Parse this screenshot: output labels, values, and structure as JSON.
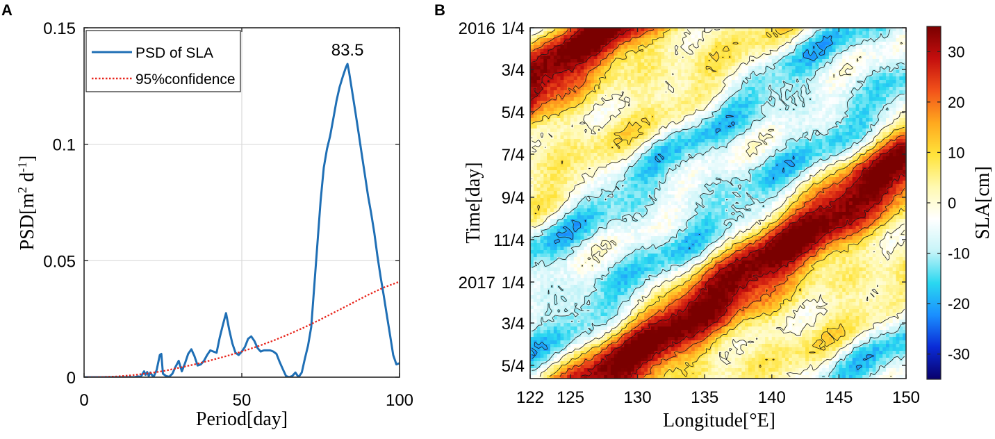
{
  "chart_data": [
    {
      "panel_label": "A",
      "type": "line",
      "xlabel": "Period[day]",
      "ylabel": "PSD[m² d⁻¹]",
      "ylabel_base": "PSD[m",
      "ylabel_sup1": "2",
      "ylabel_mid": " d",
      "ylabel_sup2": "-1",
      "ylabel_end": "]",
      "xlim": [
        0,
        100
      ],
      "ylim": [
        0,
        0.15
      ],
      "xticks": [
        0,
        50,
        100
      ],
      "xtick_labels": [
        "0",
        "50",
        "100"
      ],
      "yticks": [
        0,
        0.05,
        0.1,
        0.15
      ],
      "ytick_labels": [
        "0",
        "0.05",
        "0.1",
        "0.15"
      ],
      "grid": true,
      "legend_position": "top-left",
      "annotation": {
        "text": "83.5",
        "x": 83.5,
        "y": 0.1345
      },
      "series": [
        {
          "name": "PSD of SLA",
          "color": "#1f6fb5",
          "style": "solid",
          "x": [
            0,
            10,
            16,
            17,
            18,
            19,
            19.5,
            20,
            20.5,
            21,
            22,
            23,
            24,
            24.5,
            25,
            26,
            27,
            28,
            29,
            30,
            31,
            32,
            33,
            34,
            35,
            36,
            37,
            38,
            39,
            40,
            41,
            42,
            43,
            44,
            45,
            46,
            47,
            48,
            49,
            50,
            51,
            52,
            53,
            54,
            55,
            56,
            57,
            58,
            59,
            60,
            61,
            62,
            63,
            64,
            65,
            66,
            67,
            68,
            69,
            70,
            71,
            72,
            73,
            74,
            75,
            76,
            77,
            78,
            79,
            80,
            81,
            82,
            83,
            83.5,
            84,
            85,
            86,
            87,
            88,
            89,
            90,
            91,
            92,
            93,
            94,
            95,
            96,
            97,
            98,
            99,
            100
          ],
          "values": [
            0,
            0,
            0,
            0.0003,
            0.0002,
            0.0025,
            0.001,
            0.0022,
            0.0005,
            0.002,
            0.0,
            0.003,
            0.0095,
            0.01,
            0.0015,
            0.0005,
            0.0002,
            0.0015,
            0.0045,
            0.007,
            0.0025,
            0.006,
            0.01,
            0.012,
            0.009,
            0.005,
            0.0055,
            0.007,
            0.0095,
            0.0115,
            0.011,
            0.0105,
            0.017,
            0.0225,
            0.0275,
            0.0205,
            0.0145,
            0.0105,
            0.0095,
            0.011,
            0.013,
            0.0165,
            0.0175,
            0.0155,
            0.0125,
            0.011,
            0.0115,
            0.0115,
            0.0115,
            0.011,
            0.01,
            0.0065,
            0.0035,
            0.0005,
            0.0,
            0.0005,
            0.002,
            0.0,
            0.002,
            0.008,
            0.0135,
            0.0215,
            0.0395,
            0.058,
            0.076,
            0.09,
            0.098,
            0.1035,
            0.111,
            0.1185,
            0.1245,
            0.129,
            0.133,
            0.1345,
            0.131,
            0.1225,
            0.114,
            0.105,
            0.096,
            0.087,
            0.078,
            0.0705,
            0.062,
            0.052,
            0.043,
            0.035,
            0.0265,
            0.018,
            0.0095,
            0.0055,
            0.006
          ]
        },
        {
          "name": "95%confidence",
          "color": "#e8251c",
          "style": "dotted",
          "x": [
            0,
            5,
            10,
            15,
            20,
            25,
            30,
            35,
            40,
            45,
            50,
            55,
            60,
            65,
            70,
            75,
            80,
            85,
            90,
            95,
            100
          ],
          "values": [
            0,
            5e-05,
            0.0003,
            0.0008,
            0.0016,
            0.0026,
            0.004,
            0.0055,
            0.0072,
            0.009,
            0.011,
            0.0132,
            0.0157,
            0.0185,
            0.0215,
            0.0248,
            0.0283,
            0.0318,
            0.0353,
            0.0385,
            0.041
          ]
        }
      ]
    },
    {
      "panel_label": "B",
      "type": "heatmap",
      "xlabel": "Longitude[°E]",
      "ylabel": "Time[day]",
      "xlim": [
        122,
        150
      ],
      "xticks": [
        122,
        125,
        130,
        135,
        140,
        145,
        150
      ],
      "xtick_labels": [
        "122",
        "125",
        "130",
        "135",
        "140",
        "145",
        "150"
      ],
      "time_range_days": [
        0,
        505
      ],
      "yticks_days": [
        0,
        60,
        121,
        182,
        244,
        305,
        366,
        425,
        486
      ],
      "ytick_labels": [
        "1/4",
        "3/4",
        "5/4",
        "7/4",
        "9/4",
        "11/4",
        "1/4",
        "3/4",
        "5/4"
      ],
      "year_labels": [
        {
          "text": "2016",
          "day": 0
        },
        {
          "text": "2017",
          "day": 366
        }
      ],
      "colorbar_label": "SLA[cm]",
      "colorbar_range": [
        -35,
        35
      ],
      "colorbar_ticks": [
        30,
        20,
        10,
        0,
        -10,
        -20,
        -30
      ],
      "colorbar_tick_labels": [
        "30",
        "20",
        "10",
        "0",
        "-10",
        "-20",
        "-30"
      ],
      "contour_levels": [
        -20,
        -10,
        0,
        10,
        20,
        30
      ],
      "colormap": [
        "#08006b",
        "#0a2bd6",
        "#1a8fff",
        "#2ad8f0",
        "#c7f4f8",
        "#ffffff",
        "#fff9b0",
        "#ffe33a",
        "#ffa81e",
        "#f2521a",
        "#c40e0e",
        "#7a0000"
      ],
      "westward_band_centers": [
        {
          "sign": 1,
          "amplitude": 30,
          "lon_at_day0": 163,
          "speed_deg_per_day": -0.072
        },
        {
          "sign": -1,
          "amplitude": 22,
          "lon_at_day0": 145,
          "speed_deg_per_day": -0.072
        },
        {
          "sign": 1,
          "amplitude": 14,
          "lon_at_day0": 178,
          "speed_deg_per_day": -0.072
        },
        {
          "sign": -1,
          "amplitude": 16,
          "lon_at_day0": 192,
          "speed_deg_per_day": -0.072
        },
        {
          "sign": 1,
          "amplitude": 12,
          "lon_at_day0": 130,
          "speed_deg_per_day": -0.072
        }
      ]
    }
  ]
}
